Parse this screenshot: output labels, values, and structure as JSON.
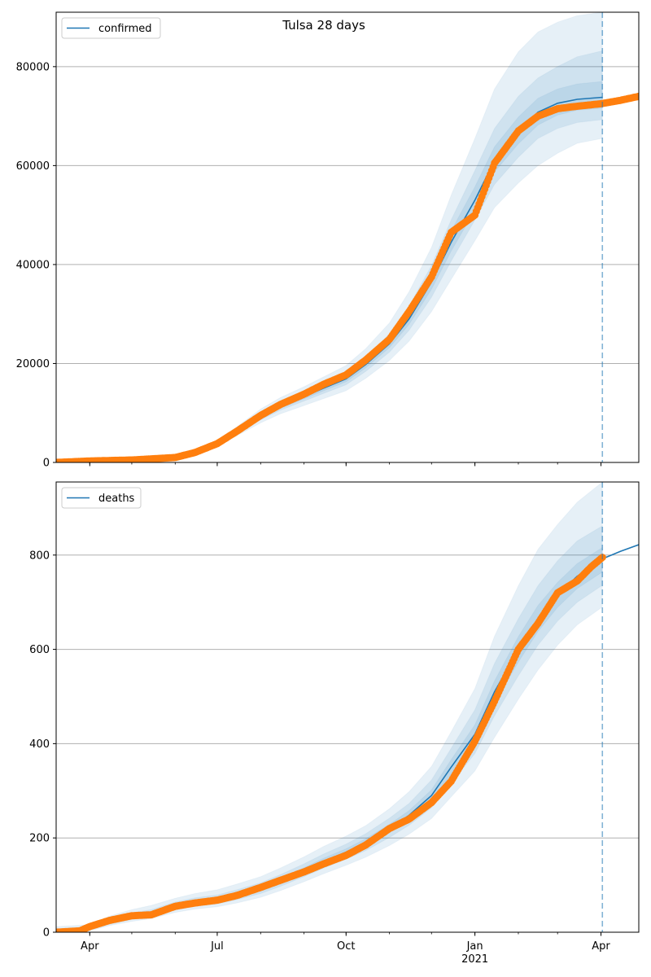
{
  "figure_title": "Tulsa 28 days",
  "colors": {
    "model": "#1f77b4",
    "observed": "#ff7f0e",
    "band": "#1f77b4",
    "grid": "#b0b0b0"
  },
  "chart_data": [
    {
      "type": "line",
      "legend_label": "confirmed",
      "legend_position": "upper-left",
      "grid_y": true,
      "x_range": [
        "2020-03-08",
        "2021-04-28"
      ],
      "forecast_start": "2021-04-02",
      "ylim": [
        0,
        91000
      ],
      "yticks": [
        0,
        20000,
        40000,
        60000,
        80000
      ],
      "xticks": [
        {
          "date": "2020-04-01",
          "label": "Apr",
          "sublabel": ""
        },
        {
          "date": "2020-07-01",
          "label": "Jul",
          "sublabel": ""
        },
        {
          "date": "2020-10-01",
          "label": "Oct",
          "sublabel": ""
        },
        {
          "date": "2021-01-01",
          "label": "Jan",
          "sublabel": "2021"
        },
        {
          "date": "2021-04-01",
          "label": "Apr",
          "sublabel": ""
        }
      ],
      "model": {
        "dates": [
          "2020-03-08",
          "2020-04-01",
          "2020-05-01",
          "2020-06-01",
          "2020-06-15",
          "2020-07-01",
          "2020-07-15",
          "2020-08-01",
          "2020-08-15",
          "2020-09-01",
          "2020-09-15",
          "2020-10-01",
          "2020-10-15",
          "2020-11-01",
          "2020-11-15",
          "2020-12-01",
          "2020-12-15",
          "2021-01-01",
          "2021-01-15",
          "2021-02-01",
          "2021-02-15",
          "2021-03-01",
          "2021-03-15",
          "2021-04-02"
        ],
        "values": [
          0,
          300,
          500,
          900,
          2000,
          3800,
          6200,
          9200,
          11300,
          13300,
          15000,
          16900,
          19800,
          24000,
          29000,
          36500,
          44500,
          53000,
          61000,
          67000,
          70800,
          72600,
          73400,
          73800
        ],
        "forecast_dates": [
          "2021-04-02",
          "2021-04-28"
        ],
        "forecast_values": [
          72500,
          73500
        ]
      },
      "bands": [
        {
          "lower": [
            0,
            200,
            400,
            800,
            1700,
            3300,
            5400,
            8000,
            9800,
            11500,
            12900,
            14500,
            17000,
            20600,
            24500,
            30500,
            37000,
            44800,
            51500,
            56500,
            60000,
            62500,
            64500,
            65500
          ],
          "upper": [
            0,
            450,
            700,
            1100,
            2400,
            4400,
            7200,
            10800,
            13100,
            15300,
            17300,
            19600,
            23000,
            28200,
            34500,
            43500,
            54000,
            65500,
            75500,
            83000,
            87000,
            89000,
            90300,
            91000
          ]
        },
        {
          "lower": [
            0,
            250,
            450,
            850,
            1850,
            3550,
            5800,
            8600,
            10550,
            12400,
            13950,
            15700,
            18400,
            22300,
            26700,
            33400,
            40700,
            49000,
            56200,
            61700,
            65500,
            67500,
            68700,
            69300
          ],
          "upper": [
            0,
            380,
            600,
            1000,
            2200,
            4100,
            6700,
            10000,
            12100,
            14200,
            16000,
            18200,
            21300,
            26000,
            31600,
            39800,
            49000,
            59000,
            67500,
            74000,
            77700,
            80000,
            82000,
            83200
          ]
        },
        {
          "lower": [
            0,
            280,
            480,
            880,
            1930,
            3680,
            6000,
            8900,
            10930,
            12850,
            14480,
            16300,
            19100,
            23200,
            27900,
            35000,
            42700,
            51000,
            58700,
            64400,
            68200,
            70200,
            71200,
            71600
          ],
          "upper": [
            0,
            330,
            540,
            950,
            2100,
            3950,
            6450,
            9550,
            11700,
            13800,
            15550,
            17600,
            20600,
            25000,
            30300,
            38200,
            46800,
            55700,
            63800,
            69800,
            73600,
            75500,
            76500,
            77000
          ]
        }
      ],
      "observed": {
        "dates": [
          "2020-03-08",
          "2020-04-01",
          "2020-05-01",
          "2020-06-01",
          "2020-06-15",
          "2020-07-01",
          "2020-07-15",
          "2020-08-01",
          "2020-08-15",
          "2020-09-01",
          "2020-09-15",
          "2020-10-01",
          "2020-10-15",
          "2020-11-01",
          "2020-11-15",
          "2020-12-01",
          "2020-12-15",
          "2021-01-01",
          "2021-01-15",
          "2021-02-01",
          "2021-02-15",
          "2021-03-01",
          "2021-03-15",
          "2021-04-01",
          "2021-04-15",
          "2021-04-28"
        ],
        "values": [
          0,
          300,
          500,
          1000,
          2000,
          3800,
          6300,
          9500,
          11700,
          13800,
          15800,
          17700,
          20700,
          24900,
          30500,
          37500,
          46500,
          50000,
          60500,
          67000,
          70000,
          71500,
          72000,
          72500,
          73200,
          74000
        ]
      }
    },
    {
      "type": "line",
      "legend_label": "deaths",
      "legend_position": "upper-left",
      "grid_y": true,
      "x_range": [
        "2020-03-08",
        "2021-04-28"
      ],
      "forecast_start": "2021-04-02",
      "ylim": [
        0,
        955
      ],
      "yticks": [
        0,
        200,
        400,
        600,
        800
      ],
      "xticks": [
        {
          "date": "2020-04-01",
          "label": "Apr",
          "sublabel": ""
        },
        {
          "date": "2020-07-01",
          "label": "Jul",
          "sublabel": ""
        },
        {
          "date": "2020-10-01",
          "label": "Oct",
          "sublabel": ""
        },
        {
          "date": "2021-01-01",
          "label": "Jan",
          "sublabel": "2021"
        },
        {
          "date": "2021-04-01",
          "label": "Apr",
          "sublabel": ""
        }
      ],
      "model": {
        "dates": [
          "2020-03-08",
          "2020-04-01",
          "2020-04-15",
          "2020-05-01",
          "2020-05-15",
          "2020-06-01",
          "2020-06-15",
          "2020-07-01",
          "2020-07-15",
          "2020-08-01",
          "2020-08-15",
          "2020-09-01",
          "2020-09-15",
          "2020-10-01",
          "2020-10-15",
          "2020-11-01",
          "2020-11-15",
          "2020-12-01",
          "2020-12-15",
          "2021-01-01",
          "2021-01-15",
          "2021-02-01",
          "2021-02-15",
          "2021-03-01",
          "2021-03-15",
          "2021-04-02"
        ],
        "values": [
          0,
          8,
          22,
          33,
          40,
          55,
          63,
          68,
          78,
          92,
          108,
          130,
          150,
          170,
          190,
          220,
          248,
          290,
          350,
          420,
          510,
          600,
          665,
          715,
          755,
          790
        ],
        "forecast_dates": [
          "2021-04-02",
          "2021-04-15",
          "2021-04-28"
        ],
        "forecast_values": [
          792,
          808,
          822
        ]
      },
      "bands": [
        {
          "lower": [
            0,
            3,
            14,
            23,
            29,
            42,
            49,
            54,
            62,
            74,
            88,
            107,
            124,
            142,
            159,
            184,
            208,
            241,
            287,
            342,
            413,
            494,
            556,
            609,
            652,
            690
          ],
          "upper": [
            12,
            16,
            34,
            48,
            57,
            72,
            82,
            90,
            102,
            118,
            136,
            160,
            182,
            204,
            226,
            262,
            298,
            352,
            425,
            517,
            628,
            735,
            812,
            865,
            912,
            955
          ]
        },
        {
          "lower": [
            0,
            5,
            17,
            27,
            33,
            47,
            55,
            60,
            69,
            82,
            97,
            118,
            136,
            155,
            173,
            201,
            227,
            264,
            316,
            379,
            459,
            544,
            609,
            660,
            700,
            736
          ],
          "upper": [
            7,
            12,
            28,
            41,
            48,
            64,
            73,
            79,
            90,
            105,
            122,
            145,
            166,
            187,
            209,
            242,
            273,
            323,
            390,
            472,
            570,
            665,
            735,
            788,
            830,
            862
          ]
        },
        {
          "lower": [
            0,
            6,
            19,
            30,
            36,
            51,
            59,
            64,
            74,
            87,
            103,
            124,
            144,
            163,
            182,
            211,
            238,
            278,
            334,
            401,
            487,
            573,
            638,
            689,
            729,
            764
          ],
          "upper": [
            3,
            10,
            25,
            37,
            44,
            59,
            67,
            72,
            83,
            97,
            113,
            137,
            157,
            177,
            198,
            229,
            258,
            302,
            366,
            440,
            533,
            627,
            693,
            742,
            782,
            816
          ]
        }
      ],
      "observed": {
        "dates": [
          "2020-03-08",
          "2020-03-25",
          "2020-04-01",
          "2020-04-15",
          "2020-05-01",
          "2020-05-15",
          "2020-06-01",
          "2020-06-15",
          "2020-07-01",
          "2020-07-15",
          "2020-08-01",
          "2020-08-15",
          "2020-09-01",
          "2020-09-15",
          "2020-10-01",
          "2020-10-15",
          "2020-11-01",
          "2020-11-15",
          "2020-12-01",
          "2020-12-15",
          "2021-01-01",
          "2021-01-15",
          "2021-02-01",
          "2021-02-15",
          "2021-03-01",
          "2021-03-15",
          "2021-03-25",
          "2021-04-02"
        ],
        "values": [
          0,
          3,
          12,
          25,
          35,
          37,
          55,
          62,
          68,
          78,
          95,
          110,
          128,
          145,
          163,
          185,
          220,
          240,
          275,
          320,
          405,
          490,
          600,
          655,
          720,
          745,
          775,
          795
        ]
      }
    }
  ]
}
